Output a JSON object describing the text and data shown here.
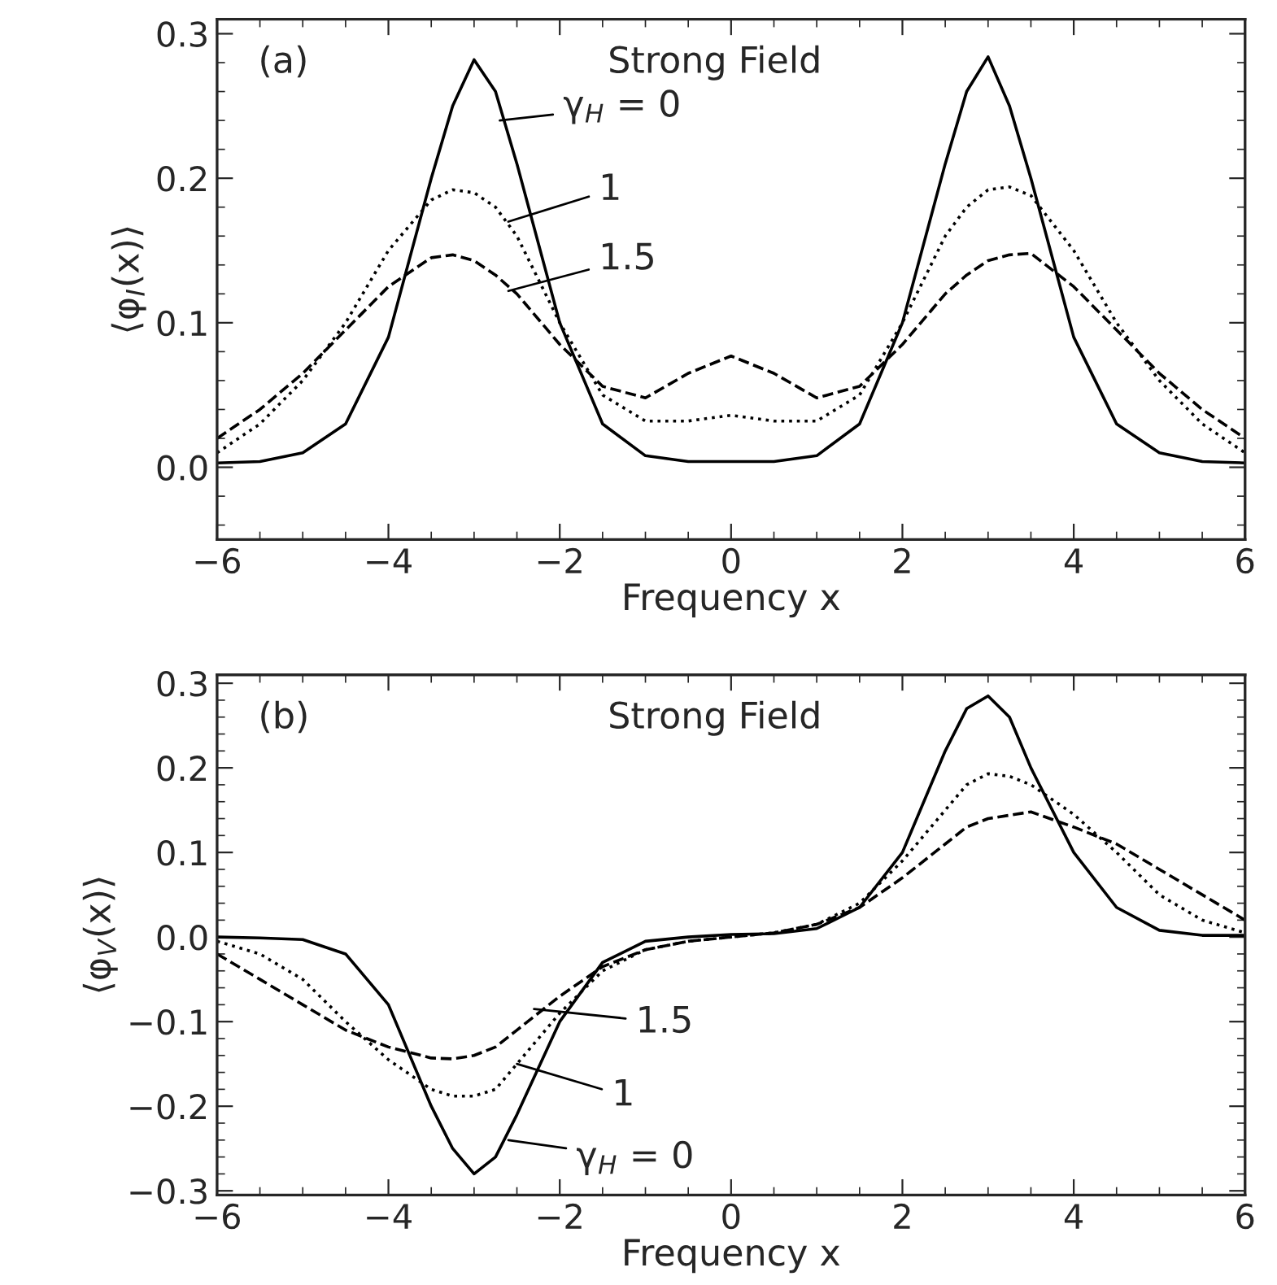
{
  "chart_data": [
    {
      "type": "line",
      "xlabel": "Frequency x",
      "ylabel": "⟨φ$_{I}$(x)⟩",
      "annotations": [
        "(a)",
        "Strong Field",
        {
          "text": "γ$_{H}$ = 0",
          "x": -2.7,
          "y": 0.24
        },
        {
          "text": "1",
          "x": -2.6,
          "y": 0.17
        },
        {
          "text": "1.5",
          "x": -2.6,
          "y": 0.122
        }
      ],
      "x": [
        -6,
        -5.5,
        -5,
        -4.5,
        -4,
        -3.5,
        -3.25,
        -3,
        -2.75,
        -2.5,
        -2,
        -1.5,
        -1,
        -0.5,
        0,
        0.5,
        1,
        1.5,
        2,
        2.5,
        2.75,
        3,
        3.25,
        3.5,
        4,
        4.5,
        5,
        5.5,
        6
      ],
      "series": [
        {
          "color": "#000000",
          "line_style": "solid",
          "values": [
            0.003,
            0.004,
            0.01,
            0.03,
            0.09,
            0.2,
            0.25,
            0.282,
            0.26,
            0.21,
            0.1,
            0.03,
            0.008,
            0.004,
            0.004,
            0.004,
            0.008,
            0.03,
            0.1,
            0.21,
            0.26,
            0.284,
            0.25,
            0.2,
            0.09,
            0.03,
            0.01,
            0.004,
            0.003
          ]
        },
        {
          "color": "#000000",
          "line_style": "dotted",
          "values": [
            0.01,
            0.03,
            0.06,
            0.1,
            0.15,
            0.185,
            0.192,
            0.19,
            0.18,
            0.16,
            0.1,
            0.05,
            0.032,
            0.032,
            0.036,
            0.032,
            0.032,
            0.05,
            0.1,
            0.16,
            0.18,
            0.192,
            0.194,
            0.188,
            0.15,
            0.1,
            0.06,
            0.03,
            0.01
          ]
        },
        {
          "color": "#000000",
          "line_style": "dashed",
          "values": [
            0.02,
            0.04,
            0.065,
            0.095,
            0.125,
            0.145,
            0.147,
            0.143,
            0.133,
            0.12,
            0.085,
            0.056,
            0.048,
            0.065,
            0.077,
            0.065,
            0.048,
            0.056,
            0.085,
            0.12,
            0.133,
            0.143,
            0.147,
            0.148,
            0.125,
            0.095,
            0.065,
            0.04,
            0.02
          ]
        }
      ],
      "xlim": [
        -6,
        6
      ],
      "xticks": [
        {
          "value": -6,
          "label": "−6"
        },
        {
          "value": -4,
          "label": "−4"
        },
        {
          "value": -2,
          "label": "−2"
        },
        0,
        2,
        4,
        6
      ],
      "ylim": [
        -0.05,
        0.31
      ],
      "yticks": [
        {
          "value": 0,
          "label": "0.0"
        },
        0.1,
        0.2,
        0.3
      ]
    },
    {
      "type": "line",
      "xlabel": "Frequency x",
      "ylabel": "⟨φ$_{V}$(x)⟩",
      "annotations": [
        "(b)",
        "Strong Field",
        {
          "text": "1.5",
          "x": -2.3,
          "y": -0.085
        },
        {
          "text": "1",
          "x": -2.5,
          "y": -0.15
        },
        {
          "text": "γ$_{H}$ = 0",
          "x": -2.6,
          "y": -0.24
        }
      ],
      "x": [
        -6,
        -5.5,
        -5,
        -4.5,
        -4,
        -3.5,
        -3.25,
        -3,
        -2.75,
        -2.5,
        -2,
        -1.5,
        -1,
        -0.5,
        0,
        0.5,
        1,
        1.5,
        2,
        2.5,
        2.75,
        3,
        3.25,
        3.5,
        4,
        4.5,
        5,
        5.5,
        6
      ],
      "series": [
        {
          "color": "#000000",
          "line_style": "solid",
          "values": [
            0.0,
            -0.001,
            -0.003,
            -0.02,
            -0.08,
            -0.2,
            -0.25,
            -0.28,
            -0.26,
            -0.21,
            -0.1,
            -0.03,
            -0.005,
            0.0,
            0.003,
            0.004,
            0.01,
            0.035,
            0.1,
            0.22,
            0.27,
            0.285,
            0.26,
            0.2,
            0.1,
            0.035,
            0.008,
            0.002,
            0.002
          ]
        },
        {
          "color": "#000000",
          "line_style": "dotted",
          "values": [
            -0.005,
            -0.02,
            -0.05,
            -0.1,
            -0.145,
            -0.18,
            -0.188,
            -0.188,
            -0.18,
            -0.15,
            -0.09,
            -0.04,
            -0.015,
            -0.005,
            0.0,
            0.005,
            0.015,
            0.04,
            0.09,
            0.15,
            0.18,
            0.193,
            0.19,
            0.18,
            0.145,
            0.1,
            0.05,
            0.02,
            0.005
          ]
        },
        {
          "color": "#000000",
          "line_style": "dashed",
          "values": [
            -0.02,
            -0.05,
            -0.08,
            -0.11,
            -0.13,
            -0.143,
            -0.144,
            -0.14,
            -0.13,
            -0.11,
            -0.07,
            -0.035,
            -0.015,
            -0.005,
            0.0,
            0.005,
            0.015,
            0.035,
            0.07,
            0.11,
            0.13,
            0.14,
            0.144,
            0.148,
            0.13,
            0.11,
            0.08,
            0.05,
            0.02
          ]
        }
      ],
      "xlim": [
        -6,
        6
      ],
      "xticks": [
        {
          "value": -6,
          "label": "−6"
        },
        {
          "value": -4,
          "label": "−4"
        },
        {
          "value": -2,
          "label": "−2"
        },
        0,
        2,
        4,
        6
      ],
      "ylim": [
        -0.305,
        0.31
      ],
      "yticks": [
        {
          "value": -0.3,
          "label": "−0.3"
        },
        {
          "value": -0.2,
          "label": "−0.2"
        },
        {
          "value": -0.1,
          "label": "−0.1"
        },
        {
          "value": 0,
          "label": "0.0"
        },
        0.1,
        0.2,
        0.3
      ]
    }
  ]
}
